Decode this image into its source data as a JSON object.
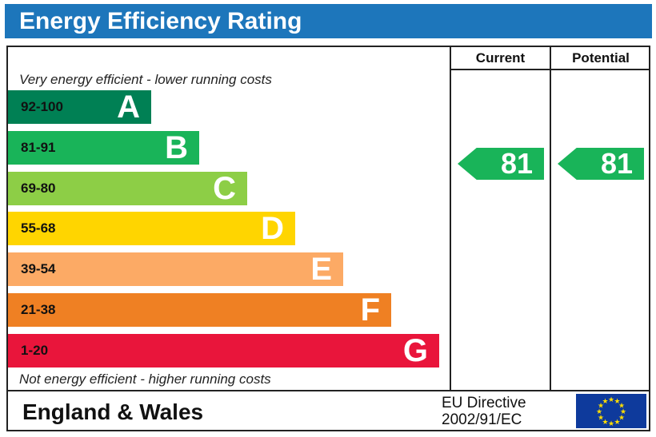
{
  "title": "Energy Efficiency Rating",
  "columns": {
    "current": "Current",
    "potential": "Potential"
  },
  "top_note": "Very energy efficient - lower running costs",
  "bottom_note": "Not energy efficient - higher running costs",
  "footer": {
    "region": "England & Wales",
    "directive_line1": "EU Directive",
    "directive_line2": "2002/91/EC"
  },
  "chart_data": {
    "type": "bar",
    "title": "Energy Efficiency Rating",
    "bands": [
      {
        "range": "92-100",
        "letter": "A",
        "color": "#008054"
      },
      {
        "range": "81-91",
        "letter": "B",
        "color": "#19b459"
      },
      {
        "range": "69-80",
        "letter": "C",
        "color": "#8dce46"
      },
      {
        "range": "55-68",
        "letter": "D",
        "color": "#ffd500"
      },
      {
        "range": "39-54",
        "letter": "E",
        "color": "#fcaa65"
      },
      {
        "range": "21-38",
        "letter": "F",
        "color": "#ef8023"
      },
      {
        "range": "1-20",
        "letter": "G",
        "color": "#e9153b"
      }
    ],
    "current": "81",
    "potential": "81",
    "current_band": "B",
    "potential_band": "B"
  }
}
